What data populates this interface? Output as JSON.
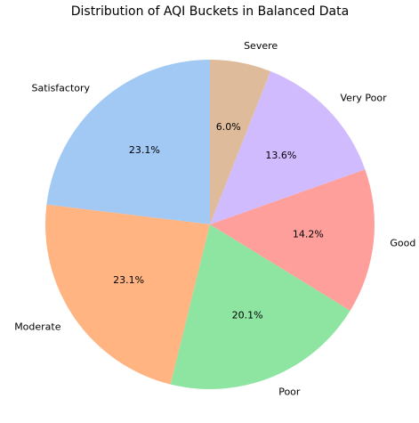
{
  "chart_data": {
    "type": "pie",
    "title": "Distribution of AQI Buckets in Balanced Data",
    "start_angle_deg": 90,
    "direction": "counterclockwise",
    "slices": [
      {
        "label": "Satisfactory",
        "value": 23.1,
        "value_label": "23.1%",
        "color": "#a1c9f4"
      },
      {
        "label": "Moderate",
        "value": 23.1,
        "value_label": "23.1%",
        "color": "#ffb482"
      },
      {
        "label": "Poor",
        "value": 20.1,
        "value_label": "20.1%",
        "color": "#8de5a1"
      },
      {
        "label": "Good",
        "value": 14.2,
        "value_label": "14.2%",
        "color": "#ff9f9b"
      },
      {
        "label": "Very Poor",
        "value": 13.6,
        "value_label": "13.6%",
        "color": "#d0bbff"
      },
      {
        "label": "Severe",
        "value": 6.0,
        "value_label": "6.0%",
        "color": "#debb9b"
      }
    ]
  }
}
